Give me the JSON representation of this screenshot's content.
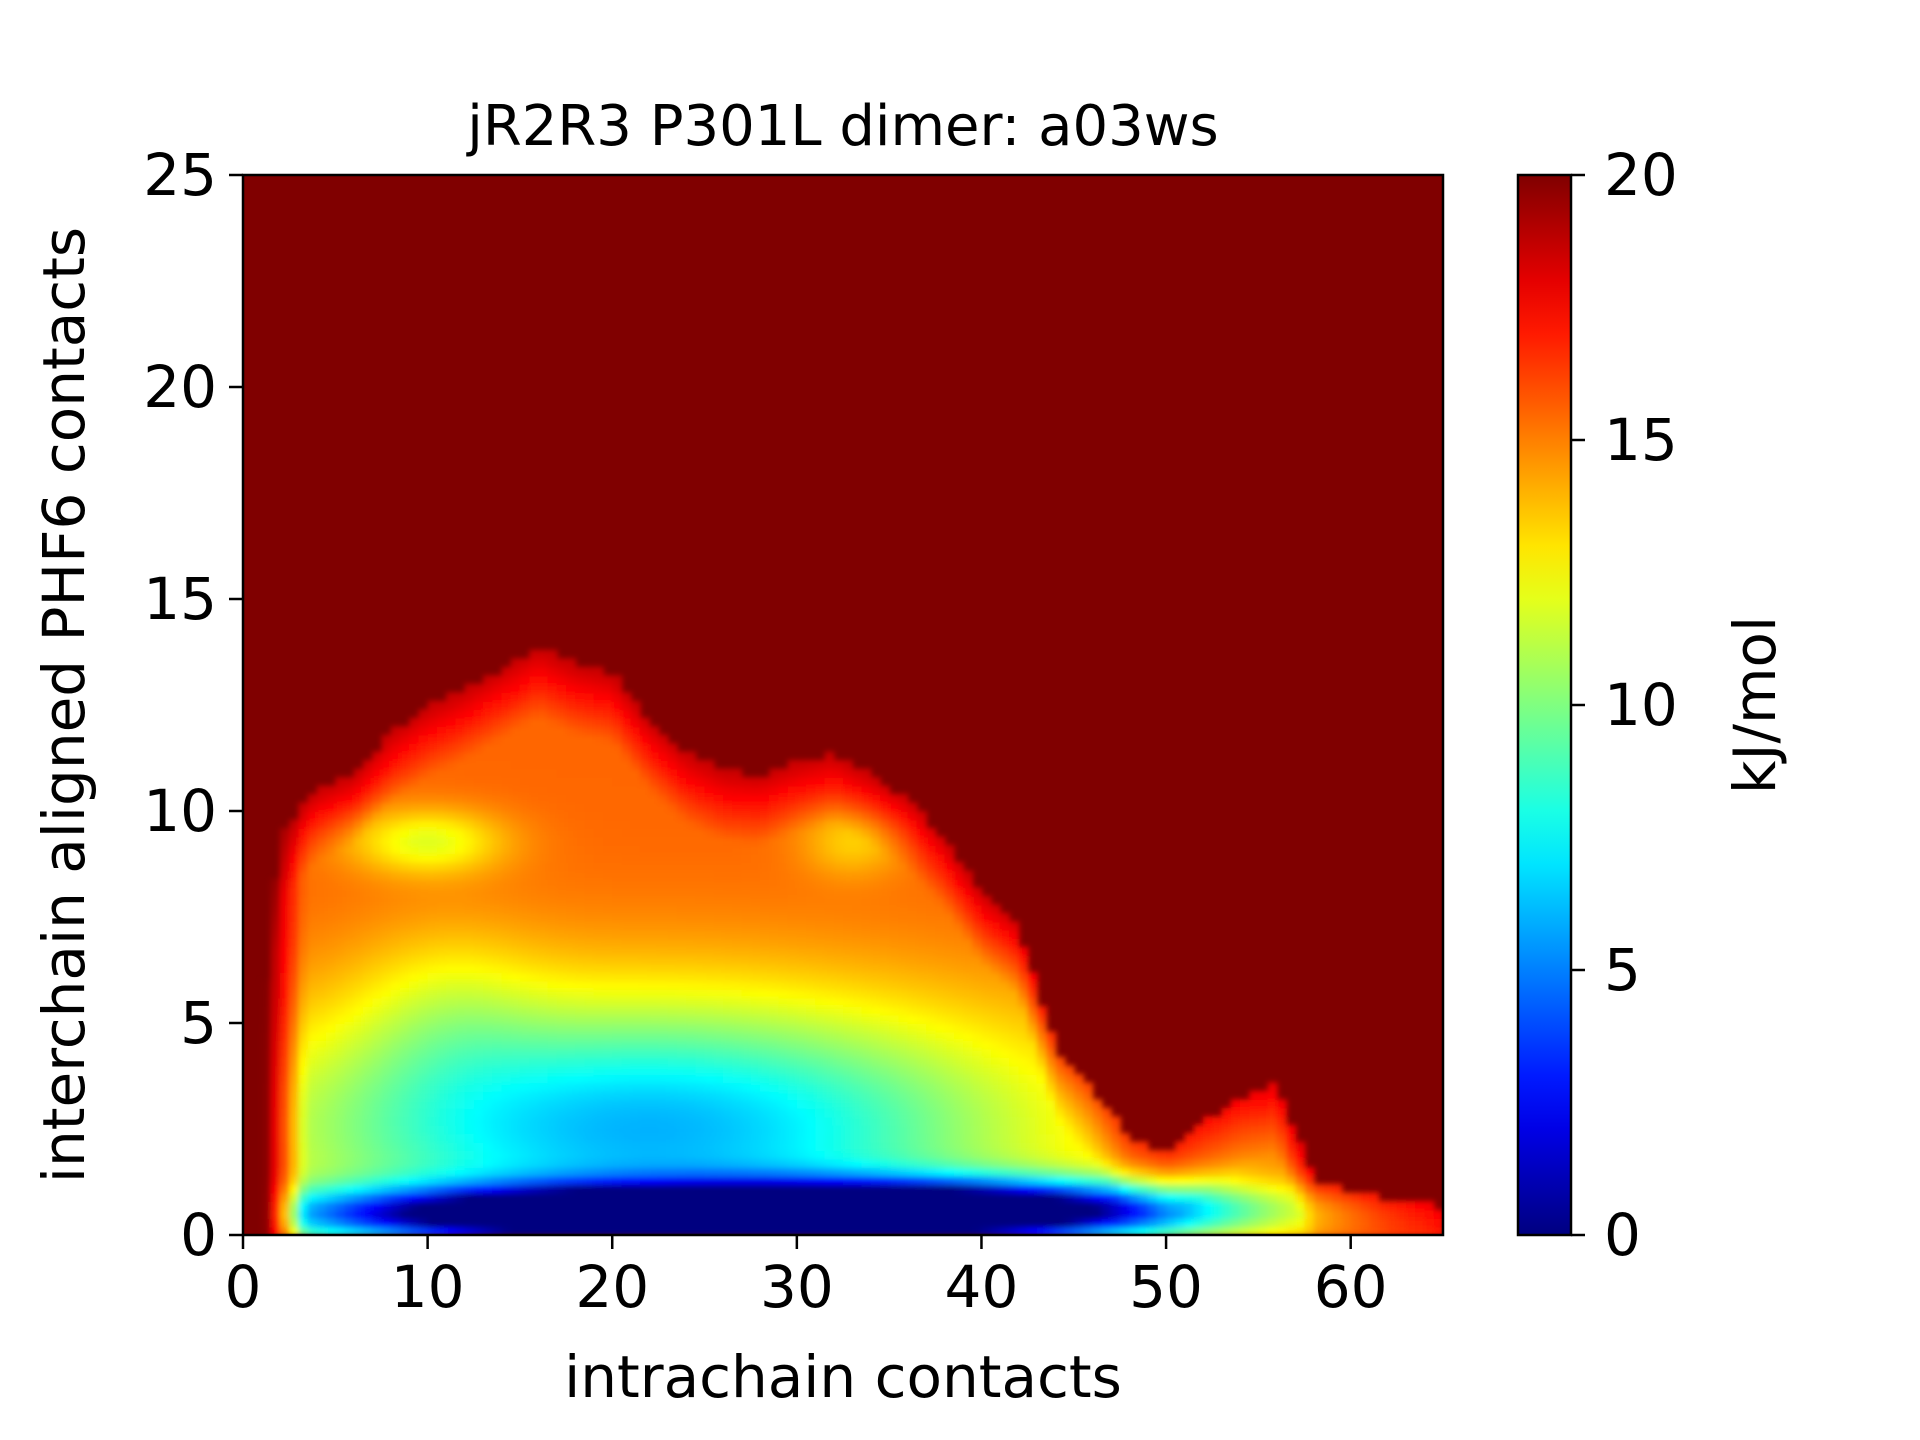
{
  "chart_data": {
    "type": "heatmap",
    "title": "jR2R3 P301L dimer: a03ws",
    "xlabel": "intrachain contacts",
    "ylabel": "interchain aligned PHF6 contacts",
    "xlim": [
      0,
      65
    ],
    "ylim": [
      0,
      25
    ],
    "xticks": [
      "0",
      "10",
      "20",
      "30",
      "40",
      "50",
      "60"
    ],
    "yticks": [
      "0",
      "5",
      "10",
      "15",
      "20",
      "25"
    ],
    "colorbar": {
      "label": "kJ/mol",
      "range": [
        0,
        20
      ],
      "ticks": [
        "0",
        "5",
        "10",
        "15",
        "20"
      ],
      "colormap": "jet"
    },
    "grid": false,
    "background_value": 20,
    "basins": [
      {
        "x": 22,
        "y": 0.5,
        "sx": 13,
        "sy": 0.45,
        "depth": 18.5
      },
      {
        "x": 40,
        "y": 0.6,
        "sx": 10,
        "sy": 0.5,
        "depth": 13
      },
      {
        "x": 22,
        "y": 2.5,
        "sx": 15,
        "sy": 2.2,
        "depth": 9.5
      },
      {
        "x": 10,
        "y": 9.3,
        "sx": 3,
        "sy": 0.55,
        "depth": 3.5
      },
      {
        "x": 33,
        "y": 9.3,
        "sx": 2,
        "sy": 0.6,
        "depth": 2
      },
      {
        "x": 11,
        "y": 5.5,
        "sx": 3.5,
        "sy": 1.5,
        "depth": 1.5
      }
    ],
    "boundary_x": [
      0,
      2,
      4,
      6,
      8,
      10,
      12,
      14,
      16,
      18,
      20,
      22,
      24,
      26,
      28,
      30,
      32,
      34,
      36,
      38,
      40,
      42,
      44,
      46,
      48,
      50,
      52,
      54,
      56,
      58,
      60,
      62,
      64,
      65
    ],
    "boundary_y": [
      0.3,
      9.5,
      10.4,
      10.8,
      11.8,
      12.4,
      12.8,
      13.3,
      13.8,
      13.4,
      13.2,
      12.1,
      11.3,
      10.9,
      10.8,
      11.1,
      11.3,
      10.8,
      10.2,
      9.3,
      8.0,
      7.2,
      4.3,
      3.4,
      2.2,
      1.9,
      2.6,
      3.2,
      3.5,
      1.2,
      1.0,
      0.8,
      0.7,
      0.6
    ]
  }
}
